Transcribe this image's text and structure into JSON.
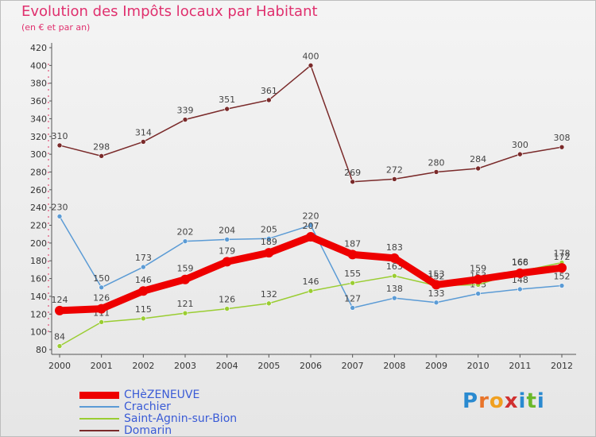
{
  "chart_data": {
    "type": "line",
    "title": "Evolution des Impôts locaux par Habitant",
    "subtitle": "(en € et par an)",
    "xlabel": "",
    "ylabel": "",
    "categories": [
      "2000",
      "2001",
      "2002",
      "2003",
      "2004",
      "2005",
      "2006",
      "2007",
      "2008",
      "2009",
      "2010",
      "2011",
      "2012"
    ],
    "y_ticks": [
      80,
      100,
      120,
      140,
      160,
      180,
      200,
      220,
      240,
      260,
      280,
      300,
      320,
      340,
      360,
      380,
      400,
      420
    ],
    "ylim": [
      80,
      420
    ],
    "grid": false,
    "legend_position": "bottom-left",
    "series": [
      {
        "name": "Domarin",
        "color": "#7a2a2a",
        "values": [
          310,
          298,
          314,
          339,
          351,
          361,
          400,
          269,
          272,
          280,
          284,
          300,
          308
        ]
      },
      {
        "name": "Crachier",
        "color": "#5b9bd5",
        "values": [
          230,
          150,
          173,
          202,
          204,
          205,
          220,
          127,
          138,
          133,
          143,
          148,
          152
        ]
      },
      {
        "name": "Saint-Agnin-sur-Bion",
        "color": "#9acd32",
        "values": [
          84,
          111,
          115,
          121,
          126,
          132,
          146,
          155,
          163,
          152,
          153,
          168,
          178
        ]
      },
      {
        "name": "CHèZENEUVE",
        "color": "#ee0000",
        "values": [
          124,
          126,
          146,
          159,
          179,
          189,
          207,
          187,
          183,
          153,
          159,
          166,
          172
        ]
      }
    ]
  },
  "legend": [
    {
      "label": "CHèZENEUVE",
      "color": "#ee0000"
    },
    {
      "label": "Crachier",
      "color": "#5b9bd5"
    },
    {
      "label": "Saint-Agnin-sur-Bion",
      "color": "#9acd32"
    },
    {
      "label": "Domarin",
      "color": "#7a2a2a"
    }
  ],
  "logo": {
    "text": "Proxiti",
    "letters": [
      "P",
      "r",
      "o",
      "x",
      "i",
      "t",
      "i"
    ]
  }
}
